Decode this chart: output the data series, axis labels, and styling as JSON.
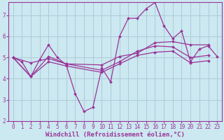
{
  "background_color": "#cce8f0",
  "grid_color": "#aaccd8",
  "line_color": "#993399",
  "xlabel": "Windchill (Refroidissement éolien,°C)",
  "xlabel_fontsize": 6.5,
  "tick_fontsize": 5.5,
  "xlim": [
    -0.5,
    23.5
  ],
  "ylim": [
    2,
    7.6
  ],
  "yticks": [
    2,
    3,
    4,
    5,
    6,
    7
  ],
  "xticks": [
    0,
    1,
    2,
    3,
    4,
    5,
    6,
    7,
    8,
    9,
    10,
    11,
    12,
    13,
    14,
    15,
    16,
    17,
    18,
    19,
    20,
    21,
    22,
    23
  ],
  "series": [
    {
      "x": [
        0,
        1,
        2,
        3,
        4,
        5,
        6,
        7,
        8,
        9,
        10,
        11,
        12,
        13,
        14,
        15,
        16,
        17,
        18,
        19,
        20,
        21,
        22,
        23
      ],
      "y": [
        5.0,
        4.8,
        4.1,
        4.9,
        5.6,
        5.0,
        4.65,
        3.3,
        2.45,
        2.65,
        4.5,
        3.85,
        6.0,
        6.85,
        6.85,
        7.3,
        7.6,
        6.5,
        5.9,
        6.25,
        4.8,
        5.4,
        5.55,
        5.05
      ]
    },
    {
      "x": [
        0,
        2,
        4,
        6,
        10,
        12,
        14,
        16,
        18,
        20,
        22
      ],
      "y": [
        5.0,
        4.75,
        4.95,
        4.7,
        4.65,
        5.05,
        5.2,
        5.7,
        5.75,
        5.6,
        5.6
      ]
    },
    {
      "x": [
        0,
        2,
        4,
        6,
        10,
        12,
        14,
        16,
        18,
        20,
        22
      ],
      "y": [
        5.0,
        4.1,
        4.8,
        4.6,
        4.3,
        4.7,
        5.1,
        5.25,
        5.3,
        4.75,
        4.85
      ]
    },
    {
      "x": [
        0,
        2,
        4,
        6,
        10,
        12,
        14,
        16,
        18,
        20,
        22
      ],
      "y": [
        5.0,
        4.1,
        5.05,
        4.7,
        4.4,
        4.8,
        5.3,
        5.55,
        5.5,
        5.0,
        5.1
      ]
    }
  ]
}
